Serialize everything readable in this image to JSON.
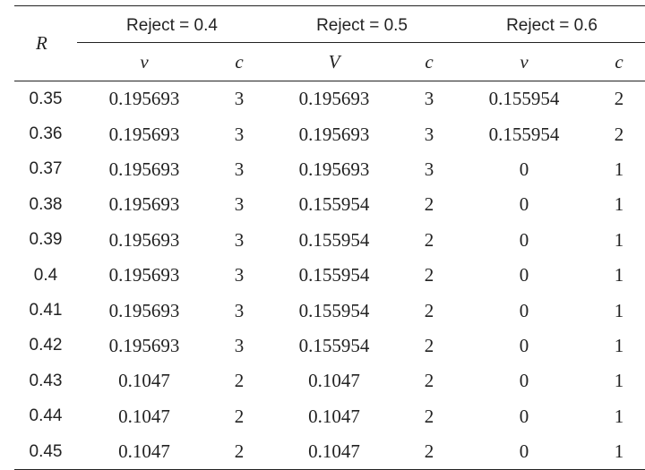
{
  "table": {
    "row_header": "R",
    "groups": [
      {
        "label": "Reject = 0.4",
        "v_label": "v",
        "c_label": "c"
      },
      {
        "label": "Reject = 0.5",
        "v_label": "V",
        "c_label": "c"
      },
      {
        "label": "Reject = 0.6",
        "v_label": "v",
        "c_label": "c"
      }
    ],
    "rows": [
      {
        "r": "0.35",
        "v1": "0.195693",
        "c1": "3",
        "v2": "0.195693",
        "c2": "3",
        "v3": "0.155954",
        "c3": "2"
      },
      {
        "r": "0.36",
        "v1": "0.195693",
        "c1": "3",
        "v2": "0.195693",
        "c2": "3",
        "v3": "0.155954",
        "c3": "2"
      },
      {
        "r": "0.37",
        "v1": "0.195693",
        "c1": "3",
        "v2": "0.195693",
        "c2": "3",
        "v3": "0",
        "c3": "1"
      },
      {
        "r": "0.38",
        "v1": "0.195693",
        "c1": "3",
        "v2": "0.155954",
        "c2": "2",
        "v3": "0",
        "c3": "1"
      },
      {
        "r": "0.39",
        "v1": "0.195693",
        "c1": "3",
        "v2": "0.155954",
        "c2": "2",
        "v3": "0",
        "c3": "1"
      },
      {
        "r": "0.4",
        "v1": "0.195693",
        "c1": "3",
        "v2": "0.155954",
        "c2": "2",
        "v3": "0",
        "c3": "1"
      },
      {
        "r": "0.41",
        "v1": "0.195693",
        "c1": "3",
        "v2": "0.155954",
        "c2": "2",
        "v3": "0",
        "c3": "1"
      },
      {
        "r": "0.42",
        "v1": "0.195693",
        "c1": "3",
        "v2": "0.155954",
        "c2": "2",
        "v3": "0",
        "c3": "1"
      },
      {
        "r": "0.43",
        "v1": "0.1047",
        "c1": "2",
        "v2": "0.1047",
        "c2": "2",
        "v3": "0",
        "c3": "1"
      },
      {
        "r": "0.44",
        "v1": "0.1047",
        "c1": "2",
        "v2": "0.1047",
        "c2": "2",
        "v3": "0",
        "c3": "1"
      },
      {
        "r": "0.45",
        "v1": "0.1047",
        "c1": "2",
        "v2": "0.1047",
        "c2": "2",
        "v3": "0",
        "c3": "1"
      }
    ]
  }
}
